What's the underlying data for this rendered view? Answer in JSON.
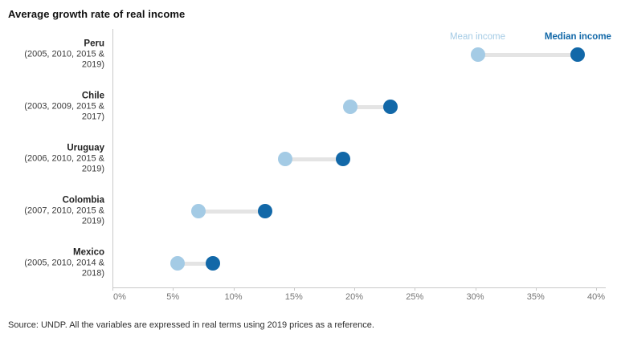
{
  "title": "Average growth rate of real income",
  "source": "Source: UNDP. All the variables are expressed in real terms using 2019 prices as a reference.",
  "colors": {
    "mean": "#a4cbe5",
    "median": "#1268a8",
    "connector": "#e4e4e4",
    "axis": "#c9c9c9",
    "tick_text": "#757575"
  },
  "chart_data": {
    "type": "dumbbell",
    "title": "Average growth rate of real income",
    "categories": [
      "Peru",
      "Chile",
      "Uruguay",
      "Colombia",
      "Mexico"
    ],
    "category_sublabels": [
      "(2005, 2010, 2015 & 2019)",
      "(2003, 2009, 2015 & 2017)",
      "(2006, 2010, 2015 & 2019)",
      "(2007, 2010, 2015 & 2019)",
      "(2005, 2010, 2014 & 2018)"
    ],
    "series": [
      {
        "name": "Mean income",
        "values": [
          30.2,
          19.7,
          14.3,
          7.1,
          5.4
        ]
      },
      {
        "name": "Median income",
        "values": [
          38.5,
          23.0,
          19.1,
          12.6,
          8.3
        ]
      }
    ],
    "value_unit": "%",
    "xlim": [
      0,
      40
    ],
    "x_ticks": [
      "0%",
      "5%",
      "10%",
      "15%",
      "20%",
      "25%",
      "30%",
      "35%",
      "40%"
    ],
    "xlabel": "",
    "ylabel": "",
    "grid": false,
    "legend_position": "above-first-row"
  }
}
